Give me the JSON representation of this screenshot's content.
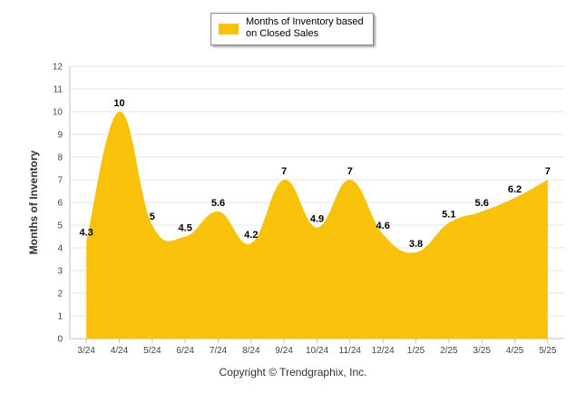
{
  "chart_data": {
    "type": "area",
    "categories": [
      "3/24",
      "4/24",
      "5/24",
      "6/24",
      "7/24",
      "8/24",
      "9/24",
      "10/24",
      "11/24",
      "12/24",
      "1/25",
      "2/25",
      "3/25",
      "4/25",
      "5/25"
    ],
    "series": [
      {
        "name": "Months of Inventory based on Closed Sales",
        "values": [
          4.3,
          10,
          5,
          4.5,
          5.6,
          4.2,
          7,
          4.9,
          7,
          4.6,
          3.8,
          5.1,
          5.6,
          6.2,
          7
        ],
        "labels": [
          "4.3",
          "10",
          "5",
          "4.5",
          "5.6",
          "4.2",
          "7",
          "4.9",
          "7",
          "4.6",
          "3.8",
          "5.1",
          "5.6",
          "6.2",
          "7"
        ]
      }
    ],
    "ylabel": "Months of Inventory",
    "xlabel": "",
    "ylim": [
      0,
      12
    ],
    "yticks": [
      "0",
      "1",
      "2",
      "3",
      "4",
      "5",
      "6",
      "7",
      "8",
      "9",
      "10",
      "11",
      "12"
    ],
    "grid": true,
    "legend_position": "top-center",
    "area_color": "#f8c20b",
    "credit": "Copyright © Trendgraphix, Inc."
  }
}
